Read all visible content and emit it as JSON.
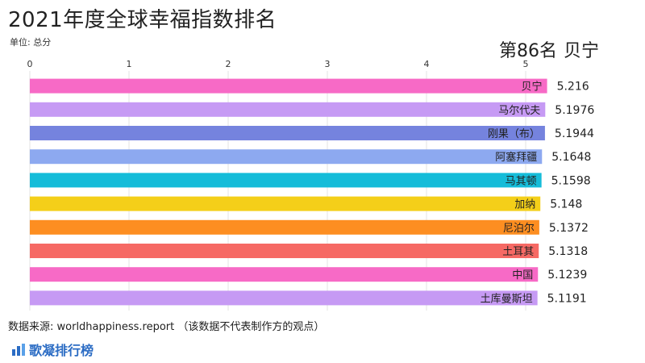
{
  "title": "2021年度全球幸福指数排名",
  "unit_label": "单位: 总分",
  "current": {
    "rank_label": "第86名",
    "country": "贝宁"
  },
  "source": "数据来源: worldhappiness.report （该数据不代表制作方的观点）",
  "brand": "歌凝排行榜",
  "chart_data": {
    "type": "bar",
    "orientation": "horizontal",
    "xlim": [
      0,
      5
    ],
    "x_ticks": [
      0,
      1,
      2,
      3,
      4,
      5
    ],
    "categories": [
      "贝宁",
      "马尔代夫",
      "刚果（布）",
      "阿塞拜疆",
      "马其顿",
      "加纳",
      "尼泊尔",
      "土耳其",
      "中国",
      "土库曼斯坦"
    ],
    "values": [
      5.216,
      5.1976,
      5.1944,
      5.1648,
      5.1598,
      5.148,
      5.1372,
      5.1318,
      5.1239,
      5.1191
    ],
    "value_labels": [
      "5.216",
      "5.1976",
      "5.1944",
      "5.1648",
      "5.1598",
      "5.148",
      "5.1372",
      "5.1318",
      "5.1239",
      "5.1191"
    ],
    "colors": [
      "#f76ac6",
      "#c69af4",
      "#7583de",
      "#8da9f0",
      "#15bcd9",
      "#f4cf19",
      "#fd8e21",
      "#f66964",
      "#f76ac6",
      "#c69af4"
    ],
    "grid": true,
    "legend": "none"
  }
}
